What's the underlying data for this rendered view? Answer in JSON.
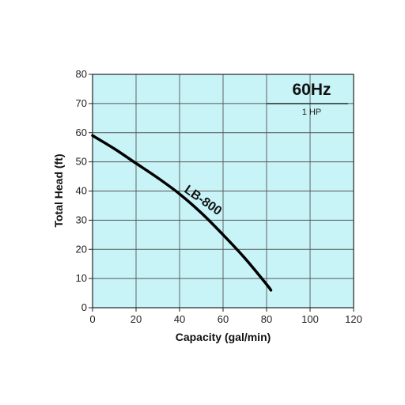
{
  "chart_data": {
    "type": "line",
    "xlabel": "Capacity (gal/min)",
    "ylabel": "Total Head (ft)",
    "xlim": [
      0,
      120
    ],
    "ylim": [
      0,
      80
    ],
    "xticks": [
      0,
      20,
      40,
      60,
      80,
      100,
      120
    ],
    "yticks": [
      0,
      10,
      20,
      30,
      40,
      50,
      60,
      70,
      80
    ],
    "grid": true,
    "background_color": "#c8f4f8",
    "line_color": "#000000",
    "annotations": {
      "frequency": "60Hz",
      "power": "1 HP"
    },
    "series": [
      {
        "name": "LB-800",
        "x": [
          0,
          10,
          20,
          30,
          40,
          50,
          60,
          70,
          80,
          82
        ],
        "y": [
          59,
          54.5,
          49.5,
          44.5,
          39,
          32.5,
          25,
          17,
          8,
          6
        ]
      }
    ]
  }
}
